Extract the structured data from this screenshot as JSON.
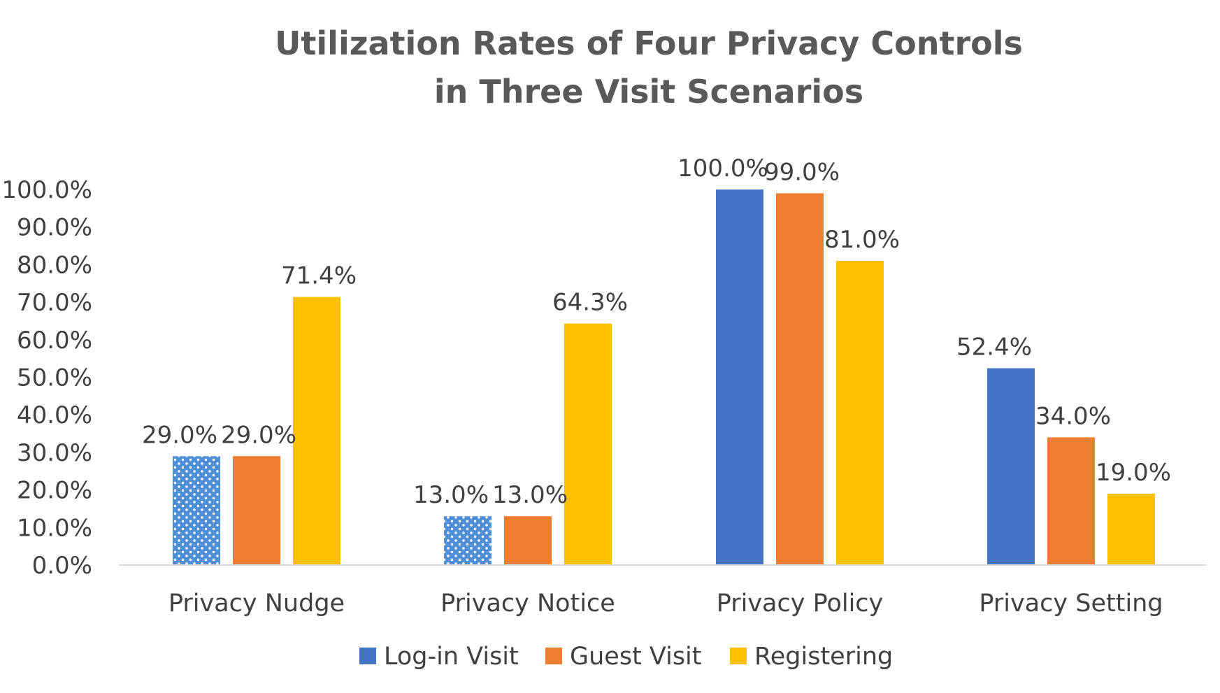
{
  "chart_data": {
    "type": "bar",
    "title_lines": [
      "Utilization Rates of Four Privacy Controls",
      "in Three Visit Scenarios"
    ],
    "xlabel": "",
    "ylabel": "",
    "categories": [
      "Privacy Nudge",
      "Privacy Notice",
      "Privacy Policy",
      "Privacy Setting"
    ],
    "series": [
      {
        "name": "Log-in Visit",
        "color": "#4472C4",
        "values": [
          29.0,
          13.0,
          100.0,
          52.4
        ],
        "labels": [
          "29.0%",
          "13.0%",
          "100.0%",
          "52.4%"
        ],
        "patterned": [
          true,
          true,
          false,
          false
        ]
      },
      {
        "name": "Guest Visit",
        "color": "#ED7D31",
        "values": [
          29.0,
          13.0,
          99.0,
          34.0
        ],
        "labels": [
          "29.0%",
          "13.0%",
          "99.0%",
          "34.0%"
        ]
      },
      {
        "name": "Registering",
        "color": "#FFC000",
        "values": [
          71.4,
          64.3,
          81.0,
          19.0
        ],
        "labels": [
          "71.4%",
          "64.3%",
          "81.0%",
          "19.0%"
        ]
      }
    ],
    "ylim": [
      0,
      100
    ],
    "yticks": [
      {
        "value": 0,
        "label": "0.0%"
      },
      {
        "value": 10,
        "label": "10.0%"
      },
      {
        "value": 20,
        "label": "20.0%"
      },
      {
        "value": 30,
        "label": "30.0%"
      },
      {
        "value": 40,
        "label": "40.0%"
      },
      {
        "value": 50,
        "label": "50.0%"
      },
      {
        "value": 60,
        "label": "60.0%"
      },
      {
        "value": 70,
        "label": "70.0%"
      },
      {
        "value": 80,
        "label": "80.0%"
      },
      {
        "value": 90,
        "label": "90.0%"
      },
      {
        "value": 100,
        "label": "100.0%"
      }
    ],
    "grid": false,
    "legend_position": "bottom",
    "axis_color": "#D9D9D9"
  }
}
